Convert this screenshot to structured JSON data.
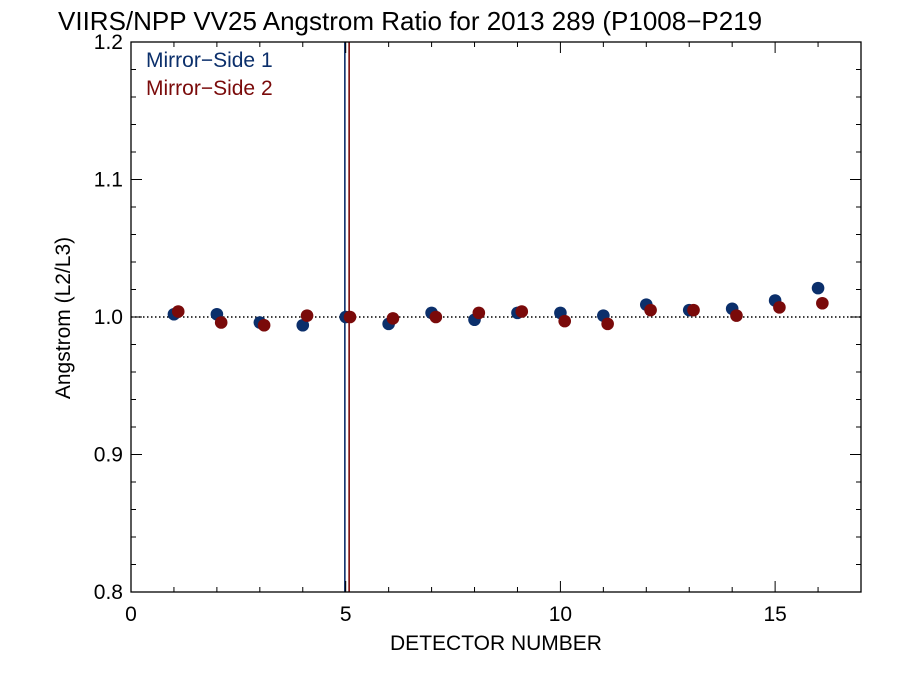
{
  "chart_data": {
    "type": "scatter",
    "title": "VIIRS/NPP VV25 Angstrom Ratio for 2013 289 (P1008−P219",
    "xlabel": "DETECTOR NUMBER",
    "ylabel": "Angstrom (L2/L3)",
    "xlim": [
      0,
      17
    ],
    "ylim": [
      0.8,
      1.2
    ],
    "xticks": [
      0,
      5,
      10,
      15
    ],
    "xtick_labels": [
      "0",
      "5",
      "10",
      "15"
    ],
    "yticks": [
      0.8,
      0.9,
      1.0,
      1.1,
      1.2
    ],
    "ytick_labels": [
      "0.8",
      "0.9",
      "1.0",
      "1.1",
      "1.2"
    ],
    "grid": false,
    "legend_position": "top-left",
    "reference_line": {
      "y": 1.0,
      "style": "dotted",
      "color": "#000000"
    },
    "vertical_lines": [
      {
        "x": 4.98,
        "color": "#0b2f6b"
      },
      {
        "x": 5.08,
        "color": "#7a0a0a"
      }
    ],
    "series": [
      {
        "name": "Mirror−Side 1",
        "color": "#0b2f6b",
        "x": [
          1,
          2,
          3,
          4,
          5,
          6,
          7,
          8,
          9,
          10,
          11,
          12,
          13,
          14,
          15,
          16
        ],
        "y": [
          1.002,
          1.002,
          0.996,
          0.994,
          1.0,
          0.995,
          1.003,
          0.998,
          1.003,
          1.003,
          1.001,
          1.009,
          1.005,
          1.006,
          1.012,
          1.021
        ]
      },
      {
        "name": "Mirror−Side 2",
        "color": "#7a0a0a",
        "x": [
          1.1,
          2.1,
          3.1,
          4.1,
          5.1,
          6.1,
          7.1,
          8.1,
          9.1,
          10.1,
          11.1,
          12.1,
          13.1,
          14.1,
          15.1,
          16.1
        ],
        "y": [
          1.004,
          0.996,
          0.994,
          1.001,
          1.0,
          0.999,
          1.0,
          1.003,
          1.004,
          0.997,
          0.995,
          1.005,
          1.005,
          1.001,
          1.007,
          1.01
        ]
      }
    ]
  }
}
